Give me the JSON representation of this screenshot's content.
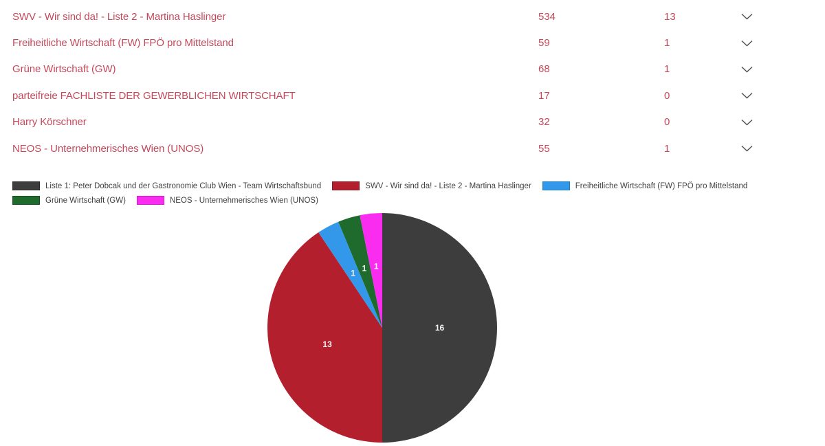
{
  "accent_color": "#c5485a",
  "table": {
    "rows": [
      {
        "name": "SWV - Wir sind da! - Liste 2 - Martina Haslinger",
        "votes": "534",
        "mandates": "13"
      },
      {
        "name": "Freiheitliche Wirtschaft (FW) FPÖ pro Mittelstand",
        "votes": "59",
        "mandates": "1"
      },
      {
        "name": "Grüne Wirtschaft (GW)",
        "votes": "68",
        "mandates": "1"
      },
      {
        "name": "parteifreie FACHLISTE DER GEWERBLICHEN WIRTSCHAFT",
        "votes": "17",
        "mandates": "0"
      },
      {
        "name": "Harry Körschner",
        "votes": "32",
        "mandates": "0"
      },
      {
        "name": "NEOS - Unternehmerisches Wien (UNOS)",
        "votes": "55",
        "mandates": "1"
      }
    ]
  },
  "icons": {
    "chevron_down": "chevron-down"
  },
  "chart_data": {
    "type": "pie",
    "title": "",
    "legend_position": "top",
    "start_angle_deg": 0,
    "direction": "clockwise",
    "total": 32,
    "label_color": "#f2f2f2",
    "slices": [
      {
        "label": "Liste 1: Peter Dobcak und der Gastronomie Club Wien - Team Wirtschaftsbund",
        "value": 16,
        "color": "#3d3d3d",
        "border": "#262626"
      },
      {
        "label": "SWV - Wir sind da! - Liste 2 - Martina Haslinger",
        "value": 13,
        "color": "#b41f2e",
        "border": "#8c1723"
      },
      {
        "label": "Freiheitliche Wirtschaft (FW) FPÖ pro Mittelstand",
        "value": 1,
        "color": "#3498ea",
        "border": "#1d7dcc"
      },
      {
        "label": "Grüne Wirtschaft (GW)",
        "value": 1,
        "color": "#1e6b2d",
        "border": "#154d20"
      },
      {
        "label": "NEOS - Unternehmerisches Wien (UNOS)",
        "value": 1,
        "color": "#fa2cf0",
        "border": "#d319ca"
      }
    ]
  }
}
